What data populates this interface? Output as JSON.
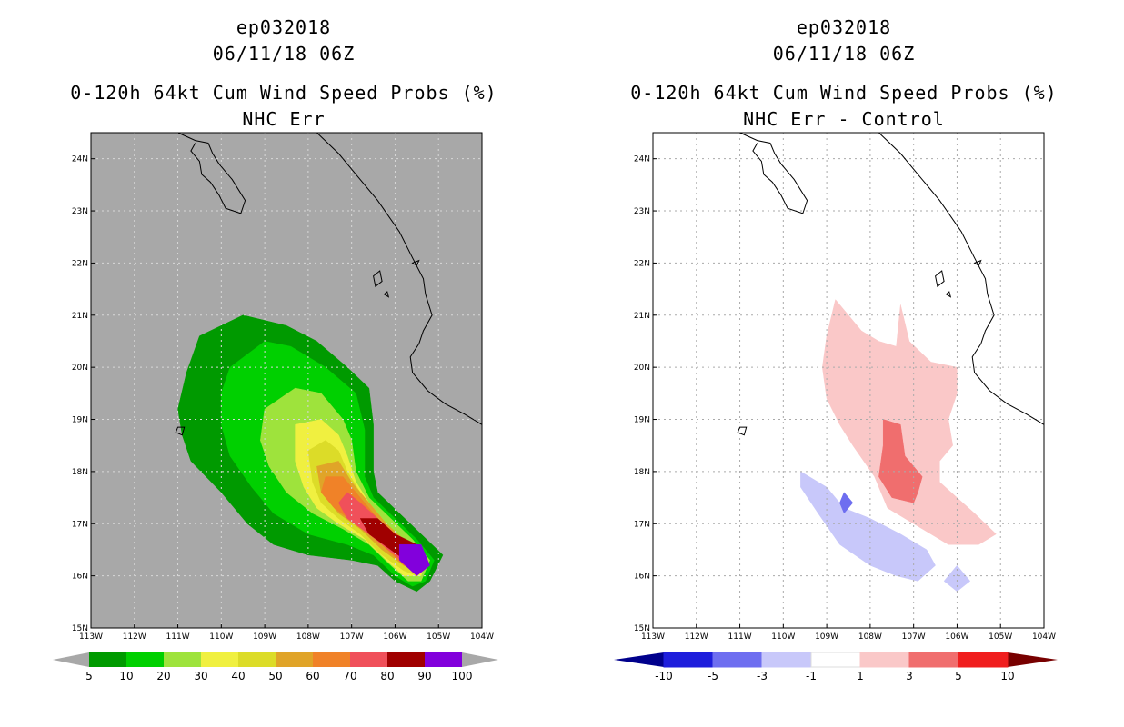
{
  "left_panel": {
    "title_lines": [
      "ep032018",
      "06/11/18 06Z",
      "0-120h 64kt Cum Wind Speed Probs (%)",
      "NHC Err"
    ]
  },
  "right_panel": {
    "title_lines": [
      "ep032018",
      "06/11/18 06Z",
      "0-120h 64kt Cum Wind Speed Probs (%)",
      "NHC Err - Control"
    ]
  },
  "chart_data": [
    {
      "type": "heatmap",
      "title": "0-120h 64kt Cum Wind Speed Probs (%) - NHC Err",
      "storm": "ep032018",
      "valid": "06/11/18 06Z",
      "x_ticks": [
        "113W",
        "112W",
        "111W",
        "110W",
        "109W",
        "108W",
        "107W",
        "106W",
        "105W",
        "104W"
      ],
      "y_ticks": [
        "15N",
        "16N",
        "17N",
        "18N",
        "19N",
        "20N",
        "21N",
        "22N",
        "23N",
        "24N"
      ],
      "xlim": [
        -113,
        -104
      ],
      "ylim": [
        15,
        24.5
      ],
      "background": "#a8a8a8",
      "colorbar": {
        "labels": [
          "5",
          "10",
          "20",
          "30",
          "40",
          "50",
          "60",
          "70",
          "80",
          "90",
          "100"
        ],
        "colors": [
          "#009a00",
          "#00d000",
          "#9ee33c",
          "#f0f040",
          "#dcdc28",
          "#e0a428",
          "#f08228",
          "#f0505a",
          "#a00000",
          "#8200dc"
        ]
      },
      "levels": [
        {
          "min": 5,
          "max": 10,
          "color": "#009a00",
          "polygon": [
            [
              -110.5,
              20.6
            ],
            [
              -109.5,
              21.0
            ],
            [
              -108.5,
              20.8
            ],
            [
              -107.8,
              20.5
            ],
            [
              -107.1,
              20.0
            ],
            [
              -106.6,
              19.6
            ],
            [
              -106.5,
              18.9
            ],
            [
              -106.5,
              18.0
            ],
            [
              -106.4,
              17.6
            ],
            [
              -105.9,
              17.2
            ],
            [
              -105.4,
              16.8
            ],
            [
              -104.9,
              16.4
            ],
            [
              -105.2,
              15.9
            ],
            [
              -105.5,
              15.7
            ],
            [
              -106.0,
              15.9
            ],
            [
              -106.4,
              16.2
            ],
            [
              -107.0,
              16.3
            ],
            [
              -108.0,
              16.4
            ],
            [
              -108.8,
              16.6
            ],
            [
              -109.4,
              17.0
            ],
            [
              -110.0,
              17.6
            ],
            [
              -110.7,
              18.2
            ],
            [
              -110.9,
              18.7
            ],
            [
              -111.0,
              19.2
            ],
            [
              -110.8,
              19.9
            ]
          ]
        },
        {
          "min": 10,
          "max": 20,
          "color": "#00d000",
          "polygon": [
            [
              -109.8,
              20.0
            ],
            [
              -109.0,
              20.5
            ],
            [
              -108.4,
              20.4
            ],
            [
              -107.6,
              20.0
            ],
            [
              -106.9,
              19.5
            ],
            [
              -106.7,
              18.8
            ],
            [
              -106.7,
              17.9
            ],
            [
              -106.5,
              17.5
            ],
            [
              -106.0,
              17.1
            ],
            [
              -105.5,
              16.7
            ],
            [
              -105.1,
              16.3
            ],
            [
              -105.3,
              15.9
            ],
            [
              -105.6,
              15.8
            ],
            [
              -106.0,
              16.0
            ],
            [
              -106.5,
              16.4
            ],
            [
              -107.1,
              16.6
            ],
            [
              -108.0,
              16.8
            ],
            [
              -108.8,
              17.2
            ],
            [
              -109.3,
              17.7
            ],
            [
              -109.8,
              18.3
            ],
            [
              -110.0,
              18.9
            ],
            [
              -110.0,
              19.5
            ]
          ]
        },
        {
          "min": 20,
          "max": 30,
          "color": "#9ee33c",
          "polygon": [
            [
              -109.0,
              19.2
            ],
            [
              -108.3,
              19.6
            ],
            [
              -107.7,
              19.5
            ],
            [
              -107.2,
              19.0
            ],
            [
              -107.0,
              18.6
            ],
            [
              -106.9,
              18.0
            ],
            [
              -106.6,
              17.5
            ],
            [
              -106.1,
              17.1
            ],
            [
              -105.6,
              16.7
            ],
            [
              -105.2,
              16.3
            ],
            [
              -105.4,
              15.9
            ],
            [
              -105.7,
              15.9
            ],
            [
              -106.1,
              16.2
            ],
            [
              -106.6,
              16.6
            ],
            [
              -107.2,
              16.9
            ],
            [
              -107.9,
              17.2
            ],
            [
              -108.5,
              17.6
            ],
            [
              -108.9,
              18.1
            ],
            [
              -109.1,
              18.6
            ]
          ]
        },
        {
          "min": 30,
          "max": 40,
          "color": "#f0f040",
          "polygon": [
            [
              -108.3,
              18.9
            ],
            [
              -107.7,
              19.0
            ],
            [
              -107.3,
              18.7
            ],
            [
              -107.1,
              18.3
            ],
            [
              -106.9,
              17.8
            ],
            [
              -106.6,
              17.4
            ],
            [
              -106.2,
              17.0
            ],
            [
              -105.7,
              16.6
            ],
            [
              -105.3,
              16.3
            ],
            [
              -105.4,
              16.0
            ],
            [
              -105.8,
              16.0
            ],
            [
              -106.2,
              16.3
            ],
            [
              -106.7,
              16.7
            ],
            [
              -107.3,
              17.0
            ],
            [
              -107.8,
              17.3
            ],
            [
              -108.1,
              17.7
            ],
            [
              -108.3,
              18.2
            ]
          ]
        },
        {
          "min": 40,
          "max": 50,
          "color": "#dcdc28",
          "polygon": [
            [
              -108.0,
              18.4
            ],
            [
              -107.6,
              18.6
            ],
            [
              -107.3,
              18.4
            ],
            [
              -107.1,
              18.0
            ],
            [
              -106.8,
              17.6
            ],
            [
              -106.4,
              17.2
            ],
            [
              -106.0,
              16.8
            ],
            [
              -105.6,
              16.5
            ],
            [
              -105.3,
              16.3
            ],
            [
              -105.5,
              16.0
            ],
            [
              -105.8,
              16.1
            ],
            [
              -106.3,
              16.4
            ],
            [
              -106.8,
              16.8
            ],
            [
              -107.3,
              17.1
            ],
            [
              -107.7,
              17.4
            ],
            [
              -107.9,
              17.8
            ]
          ]
        },
        {
          "min": 50,
          "max": 60,
          "color": "#e0a428",
          "polygon": [
            [
              -107.8,
              18.1
            ],
            [
              -107.3,
              18.2
            ],
            [
              -107.0,
              17.8
            ],
            [
              -106.6,
              17.4
            ],
            [
              -106.2,
              17.0
            ],
            [
              -105.8,
              16.7
            ],
            [
              -105.4,
              16.4
            ],
            [
              -105.4,
              16.1
            ],
            [
              -105.8,
              16.2
            ],
            [
              -106.3,
              16.5
            ],
            [
              -106.8,
              16.9
            ],
            [
              -107.3,
              17.2
            ],
            [
              -107.7,
              17.6
            ]
          ]
        },
        {
          "min": 60,
          "max": 70,
          "color": "#f08228",
          "polygon": [
            [
              -107.6,
              17.9
            ],
            [
              -107.2,
              17.9
            ],
            [
              -106.8,
              17.5
            ],
            [
              -106.4,
              17.1
            ],
            [
              -106.0,
              16.8
            ],
            [
              -105.5,
              16.5
            ],
            [
              -105.4,
              16.1
            ],
            [
              -105.8,
              16.2
            ],
            [
              -106.3,
              16.6
            ],
            [
              -106.9,
              17.0
            ],
            [
              -107.4,
              17.3
            ],
            [
              -107.7,
              17.6
            ]
          ]
        },
        {
          "min": 70,
          "max": 80,
          "color": "#f0505a",
          "polygon": [
            [
              -107.1,
              17.6
            ],
            [
              -106.8,
              17.4
            ],
            [
              -106.4,
              17.1
            ],
            [
              -106.0,
              16.8
            ],
            [
              -105.5,
              16.5
            ],
            [
              -105.3,
              16.2
            ],
            [
              -105.6,
              16.1
            ],
            [
              -106.0,
              16.4
            ],
            [
              -106.6,
              16.8
            ],
            [
              -107.1,
              17.1
            ],
            [
              -107.3,
              17.4
            ]
          ]
        },
        {
          "min": 80,
          "max": 90,
          "color": "#a00000",
          "polygon": [
            [
              -106.8,
              17.1
            ],
            [
              -106.4,
              17.1
            ],
            [
              -106.0,
              16.8
            ],
            [
              -105.5,
              16.6
            ],
            [
              -105.3,
              16.3
            ],
            [
              -105.6,
              16.2
            ],
            [
              -106.1,
              16.5
            ],
            [
              -106.6,
              16.8
            ]
          ]
        },
        {
          "min": 90,
          "max": 100,
          "color": "#8200dc",
          "polygon": [
            [
              -105.9,
              16.6
            ],
            [
              -105.4,
              16.6
            ],
            [
              -105.2,
              16.2
            ],
            [
              -105.5,
              16.0
            ],
            [
              -105.9,
              16.3
            ]
          ]
        }
      ]
    },
    {
      "type": "heatmap",
      "title": "0-120h 64kt Cum Wind Speed Probs (%) - NHC Err - Control",
      "storm": "ep032018",
      "valid": "06/11/18 06Z",
      "x_ticks": [
        "113W",
        "112W",
        "111W",
        "110W",
        "109W",
        "108W",
        "107W",
        "106W",
        "105W",
        "104W"
      ],
      "y_ticks": [
        "15N",
        "16N",
        "17N",
        "18N",
        "19N",
        "20N",
        "21N",
        "22N",
        "23N",
        "24N"
      ],
      "xlim": [
        -113,
        -104
      ],
      "ylim": [
        15,
        24.5
      ],
      "background": "#ffffff",
      "gridlines": true,
      "colorbar": {
        "labels": [
          "-10",
          "-5",
          "-3",
          "-1",
          "1",
          "3",
          "5",
          "10"
        ],
        "colors": [
          "#1e1edc",
          "#6e6ef0",
          "#c8c8fa",
          "#ffffff",
          "#fac8c8",
          "#f06e6e",
          "#f01e1e"
        ],
        "lower_extend_color": "#00008c",
        "upper_extend_color": "#780000"
      },
      "levels": [
        {
          "min": 1,
          "max": 3,
          "color": "#fac8c8",
          "polygon": [
            [
              -108.8,
              21.3
            ],
            [
              -108.2,
              20.7
            ],
            [
              -107.8,
              20.5
            ],
            [
              -107.4,
              20.4
            ],
            [
              -107.3,
              21.2
            ],
            [
              -107.1,
              20.5
            ],
            [
              -106.6,
              20.1
            ],
            [
              -106.0,
              20.0
            ],
            [
              -106.0,
              19.5
            ],
            [
              -106.2,
              19.0
            ],
            [
              -106.1,
              18.5
            ],
            [
              -106.4,
              18.2
            ],
            [
              -106.4,
              17.8
            ],
            [
              -106.0,
              17.5
            ],
            [
              -105.6,
              17.2
            ],
            [
              -105.1,
              16.8
            ],
            [
              -105.5,
              16.6
            ],
            [
              -106.2,
              16.6
            ],
            [
              -106.8,
              16.9
            ],
            [
              -107.6,
              17.3
            ],
            [
              -107.9,
              17.9
            ],
            [
              -108.4,
              18.5
            ],
            [
              -108.7,
              18.9
            ],
            [
              -109.0,
              19.4
            ],
            [
              -109.1,
              20.0
            ],
            [
              -109.0,
              20.6
            ]
          ]
        },
        {
          "min": 3,
          "max": 5,
          "color": "#f06e6e",
          "polygon": [
            [
              -107.7,
              19.0
            ],
            [
              -107.3,
              18.9
            ],
            [
              -107.2,
              18.3
            ],
            [
              -106.8,
              17.9
            ],
            [
              -106.9,
              17.6
            ],
            [
              -107.0,
              17.4
            ],
            [
              -107.5,
              17.5
            ],
            [
              -107.8,
              17.9
            ],
            [
              -107.7,
              18.5
            ]
          ]
        },
        {
          "min": -3,
          "max": -1,
          "color": "#c8c8fa",
          "polygon": [
            [
              -109.0,
              17.7
            ],
            [
              -108.6,
              17.3
            ],
            [
              -108.0,
              17.1
            ],
            [
              -107.3,
              16.8
            ],
            [
              -106.7,
              16.5
            ],
            [
              -106.5,
              16.2
            ],
            [
              -106.9,
              15.9
            ],
            [
              -107.4,
              16.0
            ],
            [
              -108.0,
              16.2
            ],
            [
              -108.7,
              16.6
            ],
            [
              -109.2,
              17.2
            ],
            [
              -109.6,
              17.7
            ],
            [
              -109.6,
              18.0
            ]
          ]
        },
        {
          "min": -3,
          "max": -1,
          "color": "#c8c8fa",
          "polygon": [
            [
              -106.0,
              16.2
            ],
            [
              -105.7,
              15.9
            ],
            [
              -106.0,
              15.7
            ],
            [
              -106.3,
              15.9
            ]
          ]
        },
        {
          "min": -5,
          "max": -3,
          "color": "#6e6ef0",
          "polygon": [
            [
              -108.6,
              17.6
            ],
            [
              -108.4,
              17.4
            ],
            [
              -108.6,
              17.2
            ],
            [
              -108.7,
              17.4
            ]
          ]
        }
      ]
    }
  ]
}
